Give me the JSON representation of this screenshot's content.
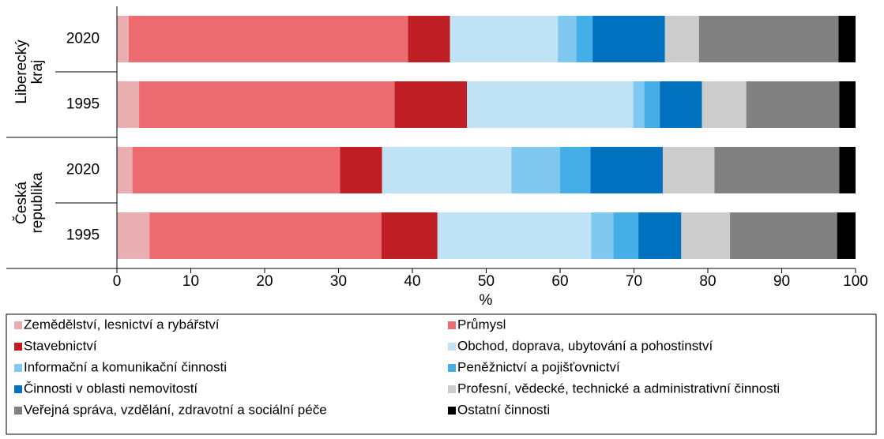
{
  "chart_data": {
    "type": "stacked-barh",
    "groups": [
      "Liberecký kraj",
      "Česká republika"
    ],
    "categories": [
      "2020",
      "1995",
      "2020",
      "1995"
    ],
    "xlabel": "%",
    "xlim": [
      0,
      100
    ],
    "xticks": [
      0,
      10,
      20,
      30,
      40,
      50,
      60,
      70,
      80,
      90,
      100
    ],
    "series": [
      {
        "name": "Zemědělství, lesnictví a rybářství",
        "color": "#e8aeb0",
        "values": [
          1.6,
          3.0,
          2.1,
          4.4
        ]
      },
      {
        "name": "Průmysl",
        "color": "#eb6b70",
        "values": [
          37.8,
          34.6,
          28.1,
          31.4
        ]
      },
      {
        "name": "Stavebnictví",
        "color": "#be1e24",
        "values": [
          5.7,
          9.8,
          5.7,
          7.6
        ]
      },
      {
        "name": "Obchod, doprava, ubytování a pohostinství",
        "color": "#bfe2f5",
        "values": [
          14.6,
          22.5,
          17.5,
          20.8
        ]
      },
      {
        "name": "Informační a komunikační činnosti",
        "color": "#80c8f0",
        "values": [
          2.5,
          1.5,
          6.6,
          3.0
        ]
      },
      {
        "name": "Peněžnictví a pojišťovnictví",
        "color": "#45aee6",
        "values": [
          2.2,
          2.1,
          4.1,
          3.4
        ]
      },
      {
        "name": "Činnosti v oblasti nemovitostí",
        "color": "#0071bf",
        "values": [
          9.8,
          5.7,
          9.8,
          5.8
        ]
      },
      {
        "name": "Profesní, vědecké, technické a administrativní činnosti",
        "color": "#cccccc",
        "values": [
          4.6,
          6.0,
          7.0,
          6.6
        ]
      },
      {
        "name": "Veřejná správa, vzdělání, zdravotní a sociální péče",
        "color": "#808080",
        "values": [
          18.9,
          12.6,
          16.9,
          14.5
        ]
      },
      {
        "name": "Ostatní činnosti",
        "color": "#000000",
        "values": [
          2.3,
          2.2,
          2.2,
          2.5
        ]
      }
    ]
  }
}
